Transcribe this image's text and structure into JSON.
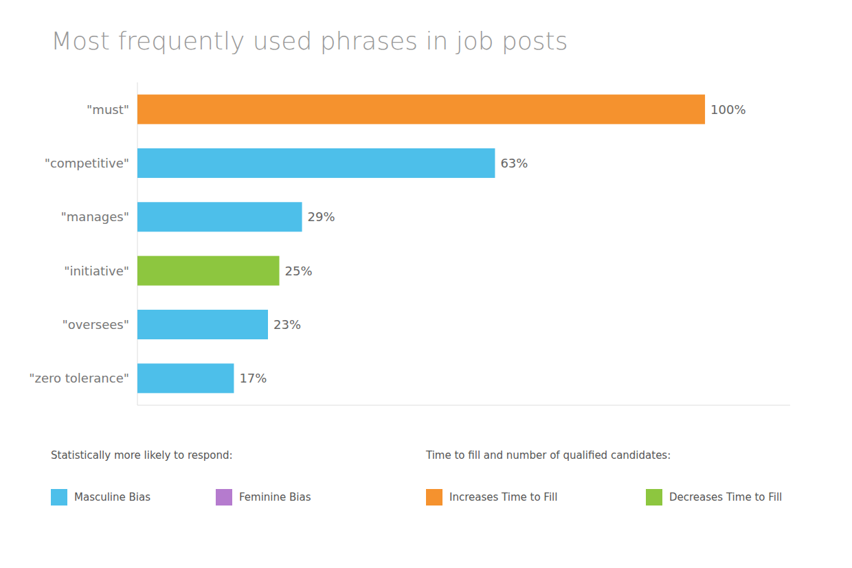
{
  "chart_data": {
    "type": "bar",
    "orientation": "horizontal",
    "title": "Most frequently used phrases in job posts",
    "categories": [
      "\"must\"",
      "\"competitive\"",
      "\"manages\"",
      "\"initiative\"",
      "\"oversees\"",
      "\"zero tolerance\""
    ],
    "values": [
      100,
      63,
      29,
      25,
      23,
      17
    ],
    "value_labels": [
      "100%",
      "63%",
      "29%",
      "25%",
      "23%",
      "17%"
    ],
    "colors": [
      "#f5922e",
      "#4dbfea",
      "#4dbfea",
      "#8dc63f",
      "#4dbfea",
      "#4dbfea"
    ],
    "xlim": [
      0,
      115
    ],
    "data_labels": true,
    "tick_labels": "y",
    "grid": false,
    "legend_groups": [
      {
        "title": "Statistically more likely to respond:",
        "items": [
          {
            "name": "Masculine Bias",
            "color": "#4dbfea"
          },
          {
            "name": "Feminine Bias",
            "color": "#b57bce"
          }
        ]
      },
      {
        "title": "Time to fill and number of qualified candidates:",
        "items": [
          {
            "name": "Increases Time to Fill",
            "color": "#f5922e"
          },
          {
            "name": "Decreases Time to Fill",
            "color": "#8dc63f"
          }
        ]
      }
    ]
  }
}
